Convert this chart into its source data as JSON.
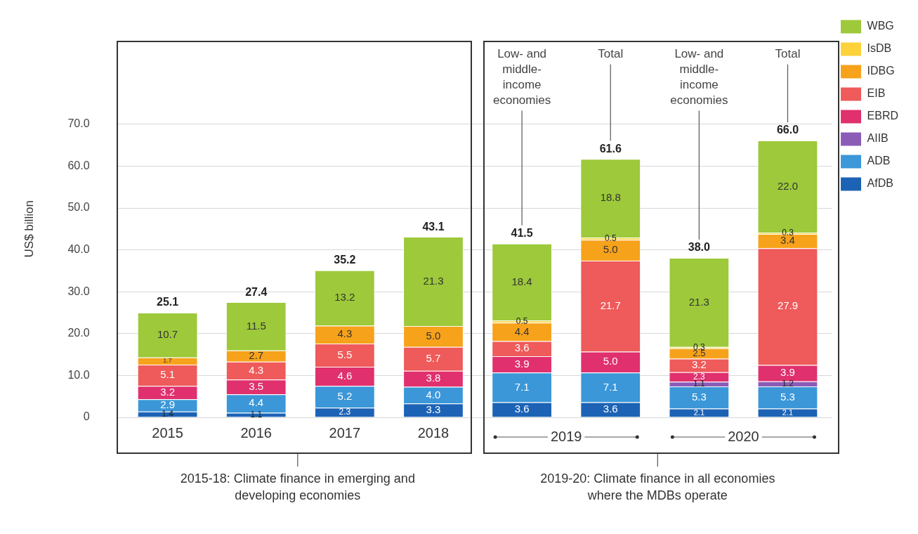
{
  "chart_data": {
    "type": "bar",
    "stacked": true,
    "categories": [
      "2015",
      "2016",
      "2017",
      "2018",
      "Low- and middle-income economies",
      "Total",
      "Low- and middle-income economies",
      "Total"
    ],
    "series": [
      {
        "name": "AfDB",
        "color": "#1c63b6",
        "values": [
          1.4,
          1.1,
          2.3,
          3.3,
          3.6,
          3.6,
          2.1,
          2.1
        ],
        "value_labels": [
          "1.4",
          "1.1",
          "2.3",
          "3.3",
          "3.6",
          "3.6",
          "2.1",
          "2.1"
        ]
      },
      {
        "name": "ADB",
        "color": "#3b97d8",
        "values": [
          2.9,
          4.4,
          5.2,
          4.0,
          7.1,
          7.1,
          5.3,
          5.3
        ],
        "value_labels": [
          "2.9",
          "4.4",
          "5.2",
          "4.0",
          "7.1",
          "7.1",
          "5.3",
          "5.3"
        ]
      },
      {
        "name": "AIIB",
        "color": "#8a5cb8",
        "values": [
          null,
          null,
          null,
          null,
          null,
          null,
          1.1,
          1.2
        ],
        "value_labels": [
          null,
          null,
          null,
          null,
          null,
          null,
          "1.1",
          "1.2"
        ]
      },
      {
        "name": "EBRD",
        "color": "#e0306e",
        "values": [
          3.2,
          3.5,
          4.6,
          3.8,
          3.9,
          5.0,
          2.3,
          3.9
        ],
        "value_labels": [
          "3.2",
          "3.5",
          "4.6",
          "3.8",
          "3.9",
          "5.0",
          "2.3",
          "3.9"
        ]
      },
      {
        "name": "EIB",
        "color": "#ef5a5a",
        "values": [
          5.1,
          4.3,
          5.5,
          5.7,
          3.6,
          21.7,
          3.2,
          27.9
        ],
        "value_labels": [
          "5.1",
          "4.3",
          "5.5",
          "5.7",
          "3.6",
          "21.7",
          "3.2",
          "27.9"
        ]
      },
      {
        "name": "IDBG",
        "color": "#f7a21b",
        "values": [
          1.7,
          2.7,
          4.3,
          5.0,
          4.4,
          5.0,
          2.5,
          3.4
        ],
        "value_labels": [
          "1.7",
          "2.7",
          "4.3",
          "5.0",
          "4.4",
          "5.0",
          "2.5",
          "3.4"
        ]
      },
      {
        "name": "IsDB",
        "color": "#fdd23a",
        "values": [
          null,
          null,
          null,
          null,
          0.5,
          0.5,
          0.3,
          0.3
        ],
        "value_labels": [
          null,
          null,
          null,
          null,
          "0.5",
          "0.5",
          "0.3",
          "0.3"
        ]
      },
      {
        "name": "WBG",
        "color": "#9dc93a",
        "values": [
          10.7,
          11.5,
          13.2,
          21.3,
          18.4,
          18.8,
          21.3,
          22.0
        ],
        "value_labels": [
          "10.7",
          "11.5",
          "13.2",
          "21.3",
          "18.4",
          "18.8",
          "21.3",
          "22.0"
        ]
      }
    ],
    "totals": [
      "25.1",
      "27.4",
      "35.2",
      "43.1",
      "41.5",
      "61.6",
      "38.0",
      "66.0"
    ],
    "ylabel": "US$ billion",
    "ylim": [
      0,
      90
    ],
    "yticks": [
      0,
      {
        "value": 10,
        "label": "10.0"
      },
      {
        "value": 20,
        "label": "20.0"
      },
      {
        "value": 30,
        "label": "30.0"
      },
      {
        "value": 40,
        "label": "40.0"
      },
      {
        "value": 50,
        "label": "50.0"
      },
      {
        "value": 60,
        "label": "60.0"
      },
      {
        "value": 70,
        "label": "70.0"
      }
    ],
    "grid": "y",
    "legend": "right",
    "annotations": [
      "2015-18: Climate finance in emerging and developing economies",
      "2019-20: Climate finance in all economies where the MDBs operate",
      "2019",
      "2020"
    ]
  }
}
